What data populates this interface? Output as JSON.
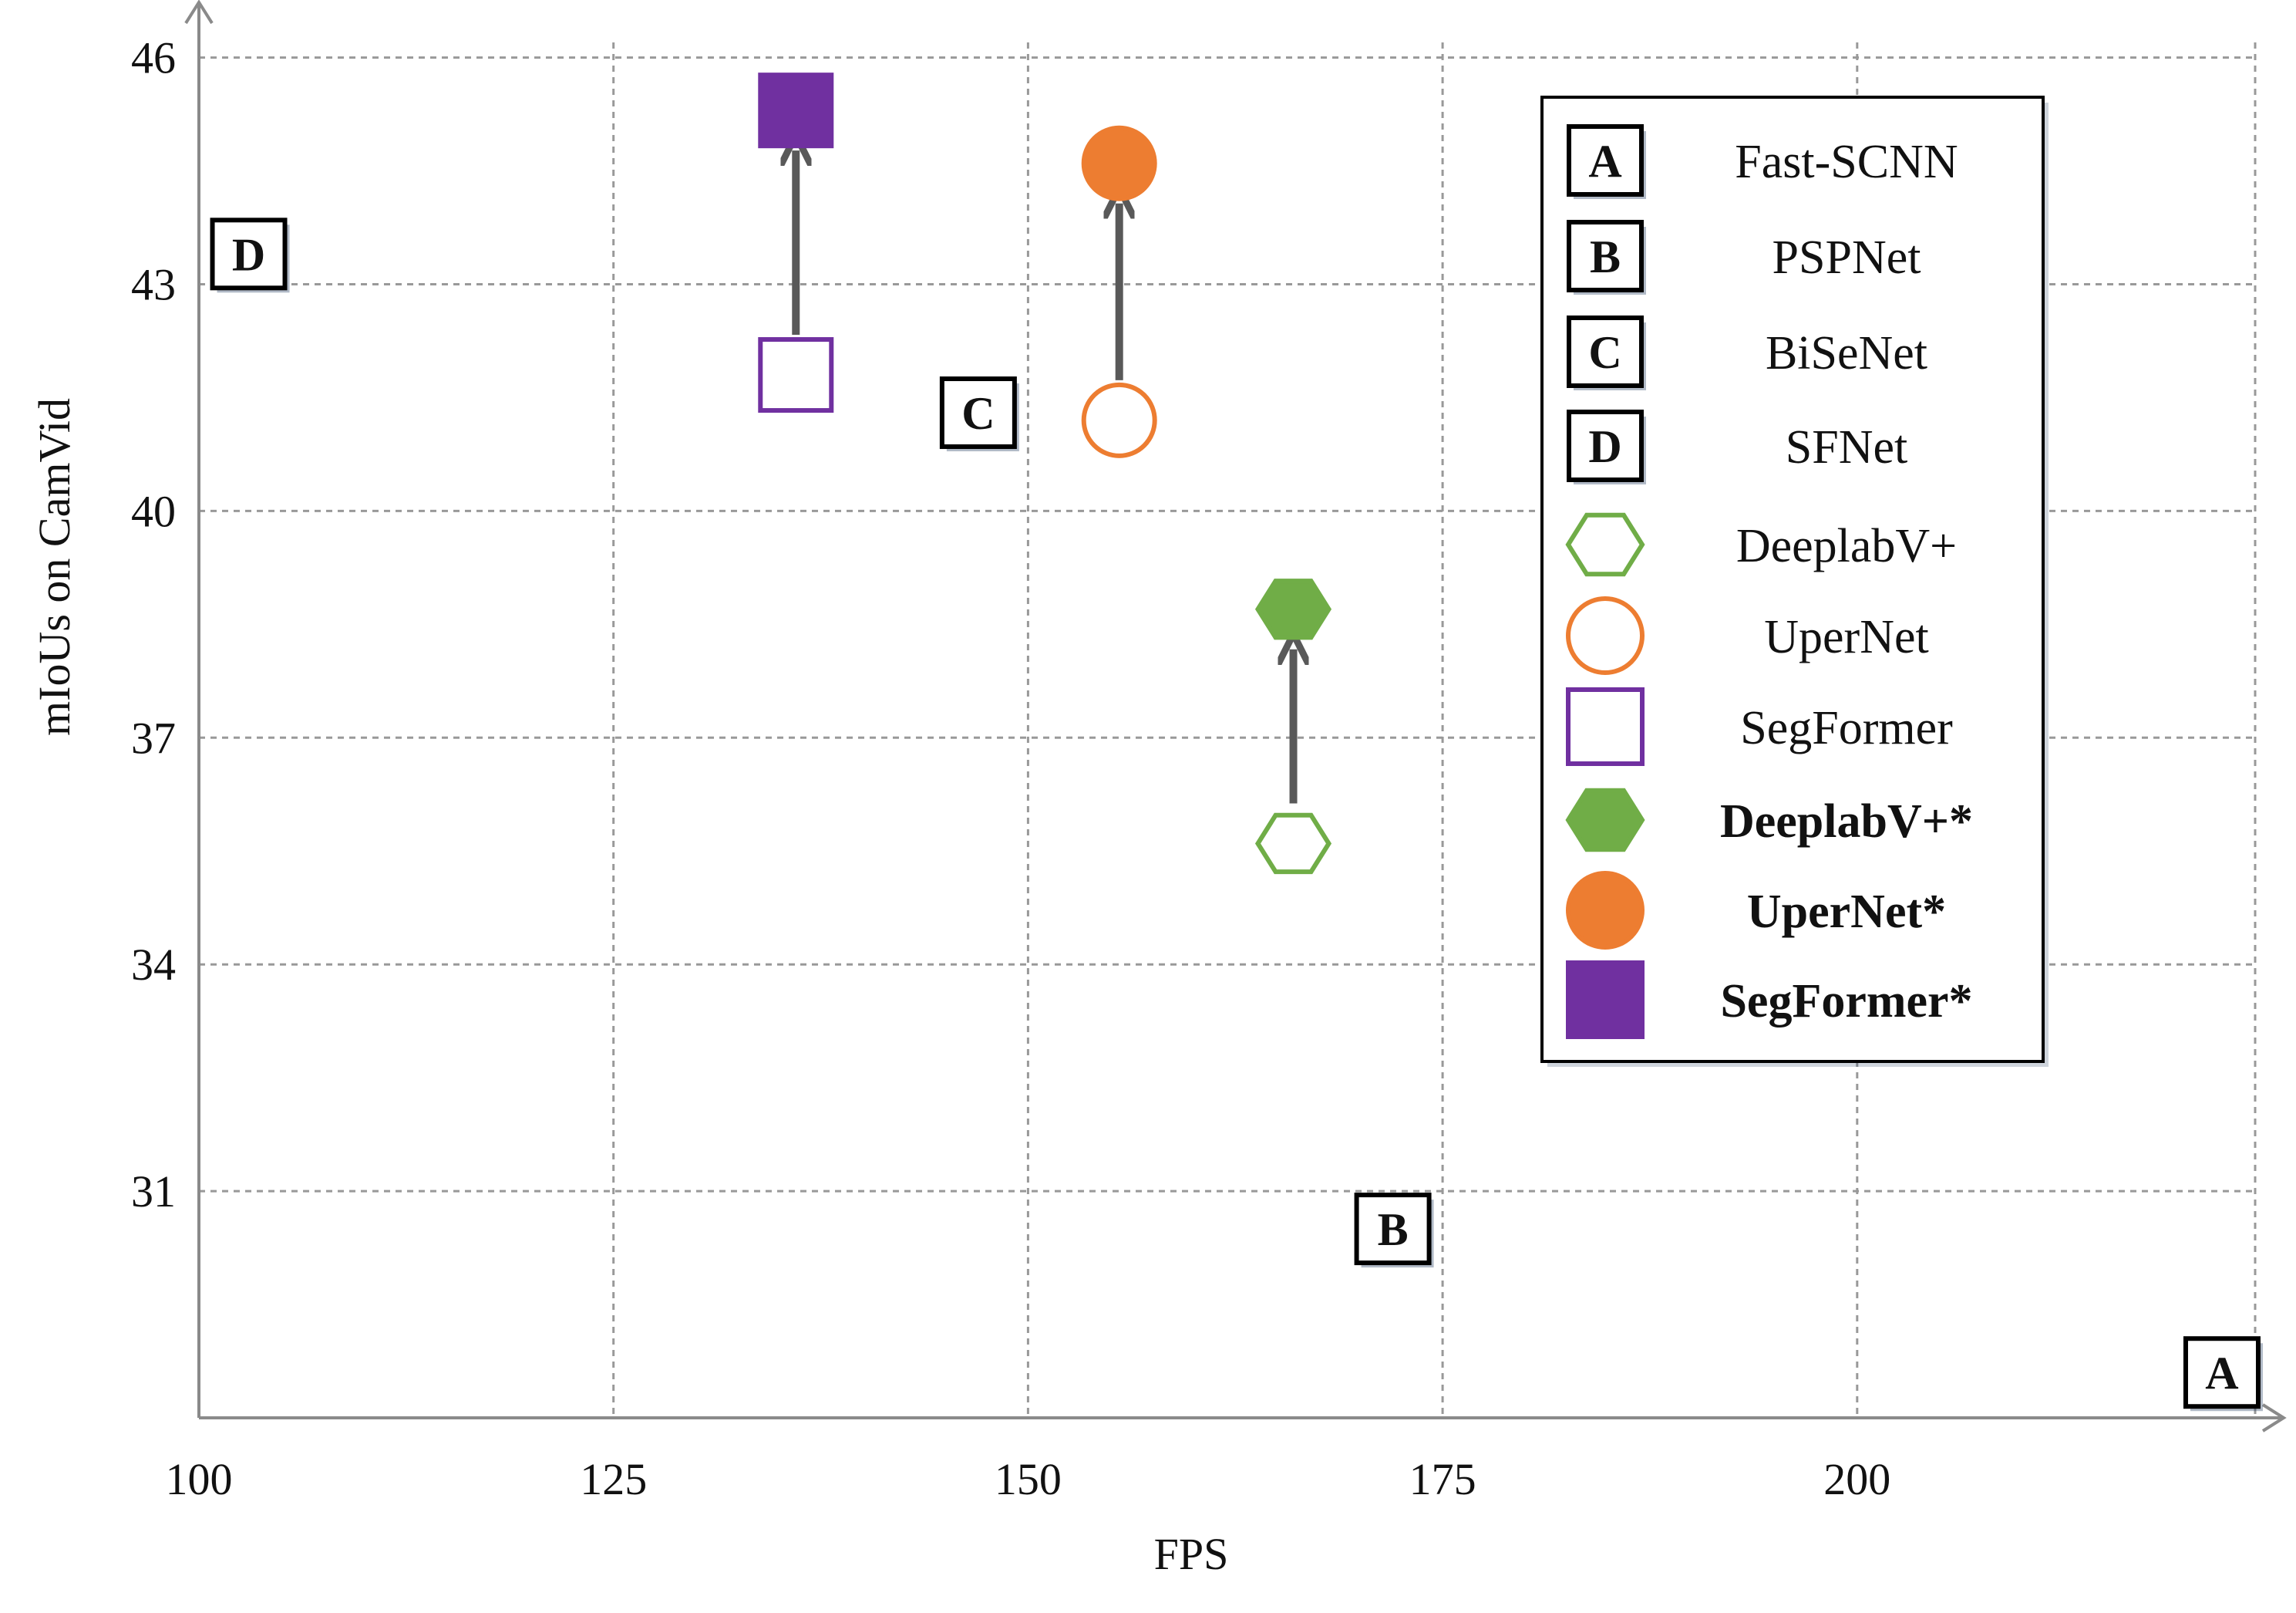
{
  "chart_data": {
    "type": "scatter",
    "xlabel": "FPS",
    "ylabel": "mIoUs on CamVid",
    "xlim": [
      100,
      224
    ],
    "ylim": [
      28,
      46.2
    ],
    "xticks": [
      "100",
      "125",
      "150",
      "175",
      "200"
    ],
    "yticks": [
      "31",
      "34",
      "37",
      "40",
      "43",
      "46"
    ],
    "grid": true,
    "legend_position": "top-right",
    "colors": {
      "deeplab": "#70AD47",
      "upernet": "#ED7D31",
      "segformer": "#7030A0",
      "arrow": "#595959",
      "grid": "#999999",
      "axis": "#8a8a8a"
    },
    "legend": [
      {
        "label": "Fast-SCNN",
        "marker": "box",
        "letter": "A",
        "bold": false
      },
      {
        "label": "PSPNet",
        "marker": "box",
        "letter": "B",
        "bold": false
      },
      {
        "label": "BiSeNet",
        "marker": "box",
        "letter": "C",
        "bold": false
      },
      {
        "label": "SFNet",
        "marker": "box",
        "letter": "D",
        "bold": false
      },
      {
        "label": "DeeplabV+",
        "marker": "hexagon-open",
        "color": "#70AD47",
        "bold": false
      },
      {
        "label": "UperNet",
        "marker": "circle-open",
        "color": "#ED7D31",
        "bold": false
      },
      {
        "label": "SegFormer",
        "marker": "square-open",
        "color": "#7030A0",
        "bold": false
      },
      {
        "label": "DeeplabV+*",
        "marker": "hexagon-filled",
        "color": "#70AD47",
        "bold": true
      },
      {
        "label": "UperNet*",
        "marker": "circle-filled",
        "color": "#ED7D31",
        "bold": true
      },
      {
        "label": "SegFormer*",
        "marker": "square-filled",
        "color": "#7030A0",
        "bold": true
      }
    ],
    "labeled_points": [
      {
        "letter": "A",
        "x": 222,
        "y": 28.6
      },
      {
        "letter": "B",
        "x": 172,
        "y": 30.5
      },
      {
        "letter": "C",
        "x": 147,
        "y": 41.3
      },
      {
        "letter": "D",
        "x": 103,
        "y": 43.4
      }
    ],
    "series": [
      {
        "name": "DeeplabV+",
        "marker": "hexagon-open",
        "color": "#70AD47",
        "x": [
          166
        ],
        "y": [
          35.6
        ]
      },
      {
        "name": "UperNet",
        "marker": "circle-open",
        "color": "#ED7D31",
        "x": [
          155.5
        ],
        "y": [
          41.2
        ]
      },
      {
        "name": "SegFormer",
        "marker": "square-open",
        "color": "#7030A0",
        "x": [
          136
        ],
        "y": [
          41.8
        ]
      },
      {
        "name": "DeeplabV+*",
        "marker": "hexagon-filled",
        "color": "#70AD47",
        "x": [
          166
        ],
        "y": [
          38.7
        ]
      },
      {
        "name": "UperNet*",
        "marker": "circle-filled",
        "color": "#ED7D31",
        "x": [
          155.5
        ],
        "y": [
          44.6
        ]
      },
      {
        "name": "SegFormer*",
        "marker": "square-filled",
        "color": "#7030A0",
        "x": [
          136
        ],
        "y": [
          45.3
        ]
      }
    ],
    "arrows": [
      {
        "from": [
          136,
          41.8
        ],
        "to": [
          136,
          45.3
        ]
      },
      {
        "from": [
          155.5,
          41.2
        ],
        "to": [
          155.5,
          44.6
        ]
      },
      {
        "from": [
          166,
          35.6
        ],
        "to": [
          166,
          38.7
        ]
      }
    ]
  }
}
